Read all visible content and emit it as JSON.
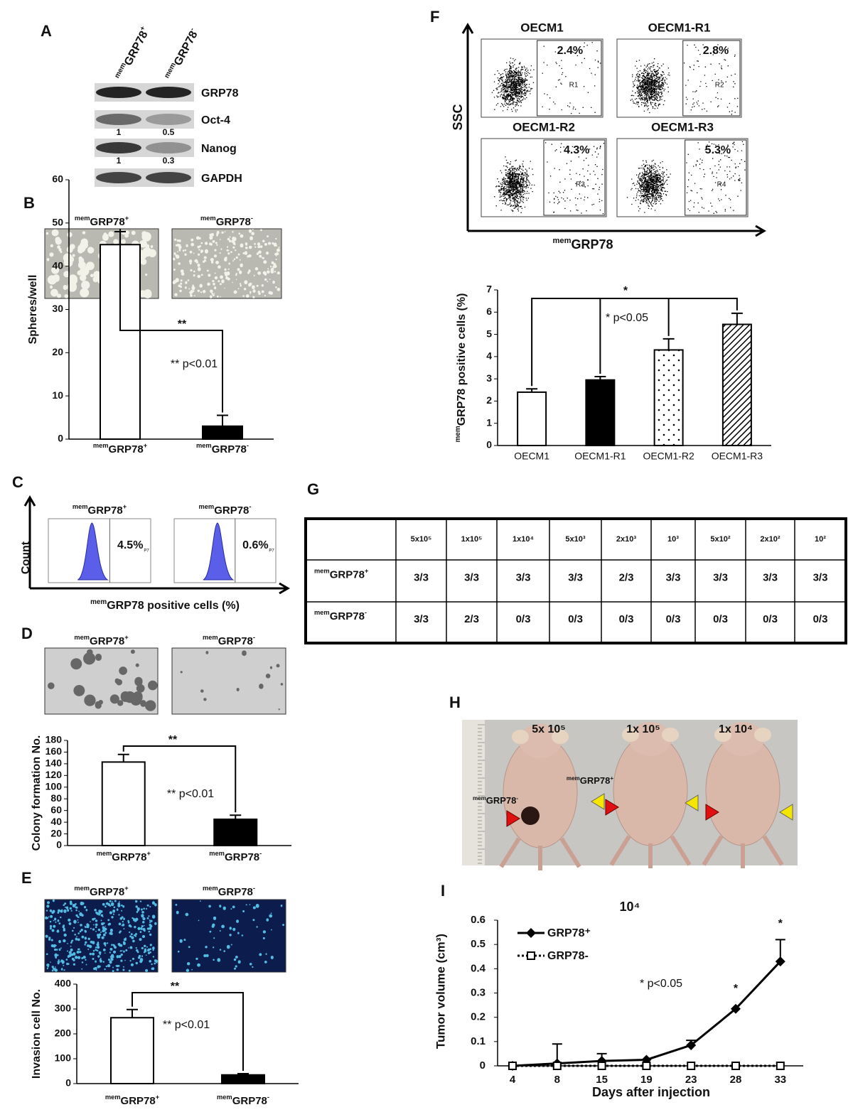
{
  "panel_labels": [
    "A",
    "B",
    "C",
    "D",
    "E",
    "F",
    "G",
    "H",
    "I"
  ],
  "western": {
    "lanes": [
      {
        "pre": "mem",
        "main": "GRP78",
        "post": "+"
      },
      {
        "pre": "mem",
        "main": "GRP78",
        "post": "-"
      }
    ],
    "rows": [
      "GRP78",
      "Oct-4",
      "Nanog",
      "GAPDH"
    ],
    "quant": [
      [
        1,
        0.5
      ],
      [
        1,
        0.3
      ]
    ]
  },
  "images": [
    [
      {
        "pre": "mem",
        "main": "GRP78",
        "post": "+"
      },
      {
        "pre": "mem",
        "main": "GRP78",
        "post": "-"
      }
    ],
    [
      {
        "pre": "mem",
        "main": "GRP78",
        "post": "+"
      },
      {
        "pre": "mem",
        "main": "GRP78",
        "post": "-"
      }
    ],
    [
      {
        "pre": "mem",
        "main": "GRP78",
        "post": "+"
      },
      {
        "pre": "mem",
        "main": "GRP78",
        "post": "-"
      }
    ]
  ],
  "flow_c": {
    "plots": [
      {
        "label": {
          "pre": "mem",
          "main": "GRP78",
          "post": "+"
        },
        "percent": "4.5%",
        "gate": "P7"
      },
      {
        "label": {
          "pre": "mem",
          "main": "GRP78",
          "post": "-"
        },
        "percent": "0.6%",
        "gate": "P7"
      }
    ],
    "y_label": "Count",
    "x_label": {
      "pre": "mem",
      "main": "GRP78 positive cells (%)"
    }
  },
  "flow_f": {
    "plots": [
      {
        "title": "OECM1",
        "percent": "2.4%",
        "region": "R1"
      },
      {
        "title": "OECM1-R1",
        "percent": "2.8%",
        "region": "R2"
      },
      {
        "title": "OECM1-R2",
        "percent": "4.3%",
        "region": "R3"
      },
      {
        "title": "OECM1-R3",
        "percent": "5.3%",
        "region": "R4"
      }
    ],
    "y_label": "SSC",
    "x_label": {
      "pre": "mem",
      "main": "GRP78"
    }
  },
  "table": {
    "header": [
      "5x10⁵",
      "1x10⁵",
      "1x10⁴",
      "5x10³",
      "2x10³",
      "10³",
      "5x10²",
      "2x10²",
      "10²"
    ],
    "rows": [
      {
        "label": {
          "pre": "mem",
          "main": "GRP78",
          "post": "+"
        },
        "cells": [
          "3/3",
          "3/3",
          "3/3",
          "3/3",
          "2/3",
          "3/3",
          "3/3",
          "3/3",
          "3/3"
        ]
      },
      {
        "label": {
          "pre": "mem",
          "main": "GRP78",
          "post": "-"
        },
        "cells": [
          "3/3",
          "2/3",
          "0/3",
          "0/3",
          "0/3",
          "0/3",
          "0/3",
          "0/3",
          "0/3"
        ]
      }
    ]
  },
  "photo": {
    "doses": [
      "5x 10⁵",
      "1x 10⁵",
      "1x 10⁴"
    ],
    "labels": [
      {
        "pre": "mem",
        "main": "GRP78",
        "post": "-"
      },
      {
        "pre": "mem",
        "main": "GRP78",
        "post": "+"
      }
    ]
  },
  "chart_data": [
    {
      "type": "bar",
      "y_label": "Spheres/well",
      "categories": [
        {
          "pre": "mem",
          "main": "GRP78",
          "post": "+"
        },
        {
          "pre": "mem",
          "main": "GRP78",
          "post": "-"
        }
      ],
      "values": [
        45,
        3
      ],
      "errors": [
        3,
        2.5
      ],
      "fills": [
        "#ffffff",
        "#000000"
      ],
      "ylim": [
        0,
        60
      ],
      "yticks": [
        0,
        10,
        20,
        30,
        40,
        50,
        60
      ],
      "annotations": [
        "**",
        "** p<0.01"
      ]
    },
    {
      "type": "bar",
      "y_label": "Colony formation No.",
      "categories": [
        {
          "pre": "mem",
          "main": "GRP78",
          "post": "+"
        },
        {
          "pre": "mem",
          "main": "GRP78",
          "post": "-"
        }
      ],
      "values": [
        143,
        45
      ],
      "errors": [
        13,
        7
      ],
      "fills": [
        "#ffffff",
        "#000000"
      ],
      "ylim": [
        0,
        180
      ],
      "yticks": [
        0,
        20,
        40,
        60,
        80,
        100,
        120,
        140,
        160,
        180
      ],
      "annotations": [
        "**",
        "** p<0.01"
      ]
    },
    {
      "type": "bar",
      "y_label": "Invasion cell No.",
      "categories": [
        {
          "pre": "mem",
          "main": "GRP78",
          "post": "+"
        },
        {
          "pre": "mem",
          "main": "GRP78",
          "post": "-"
        }
      ],
      "values": [
        265,
        35
      ],
      "errors": [
        33,
        5
      ],
      "fills": [
        "#ffffff",
        "#000000"
      ],
      "ylim": [
        0,
        400
      ],
      "yticks": [
        0,
        100,
        200,
        300,
        400
      ],
      "annotations": [
        "**",
        "** p<0.01"
      ]
    },
    {
      "type": "bar",
      "y_label": {
        "pre": "mem",
        "main": "GRP78 positive cells (%)"
      },
      "categories": [
        "OECM1",
        "OECM1-R1",
        "OECM1-R2",
        "OECM1-R3"
      ],
      "values": [
        2.4,
        2.95,
        4.3,
        5.45
      ],
      "errors": [
        0.15,
        0.15,
        0.5,
        0.5
      ],
      "fills": [
        "#ffffff",
        "#000000",
        "dots",
        "hatch"
      ],
      "ylim": [
        0,
        7
      ],
      "yticks": [
        0,
        1,
        2,
        3,
        4,
        5,
        6,
        7
      ],
      "annotations": [
        "*",
        "* p<0.05"
      ]
    },
    {
      "type": "line",
      "title": "10⁴",
      "y_label": "Tumor volume (cm³)",
      "x_label": "Days after injection",
      "categories": [
        "4",
        "8",
        "15",
        "19",
        "23",
        "28",
        "33"
      ],
      "series": [
        {
          "name": "GRP78⁺",
          "marker": "diamond",
          "dashed": false,
          "values": [
            0,
            0.01,
            0.02,
            0.025,
            0.085,
            0.235,
            0.43
          ],
          "errors": [
            0,
            0.08,
            0.03,
            0,
            0.02,
            0,
            0.09
          ]
        },
        {
          "name": "GRP78-",
          "marker": "square",
          "dashed": true,
          "values": [
            0,
            0,
            0,
            0,
            0,
            0,
            0
          ]
        }
      ],
      "ylim": [
        0,
        0.6
      ],
      "yticks": [
        0,
        0.1,
        0.2,
        0.3,
        0.4,
        0.5,
        0.6
      ],
      "annotations": [
        "*",
        "*",
        "* p<0.05"
      ]
    }
  ]
}
